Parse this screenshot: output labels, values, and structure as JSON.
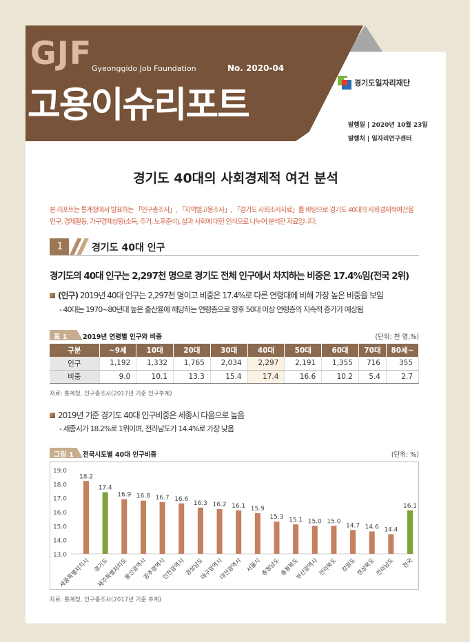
{
  "header": {
    "brand": "GJF",
    "brand_sub": "Gyeonggido Job Foundation",
    "issue_no": "No. 2020-04",
    "series_title": "고용이슈리포트",
    "org_logo_text": "경기도일자리재단",
    "issue_date": "발행일 | 2020년 10월 23일",
    "publisher": "발행처 | 일자리연구센터"
  },
  "doc_title": "경기도 40대의 사회경제적 여건 분석",
  "intro": [
    "본 리포트는 통계청에서 발표하는 「인구총조사」, 「지역별고용조사」, 「경기도 사회조사자료」를 바탕으로 경기도 40대의 사회경제적여건을",
    "인구, 경제활동, 가구경제상황(소득, 주거, 노후준비), 삶과 사회에 대한 인식으로 나누어 분석한 자료입니다."
  ],
  "section": {
    "number": "1",
    "title": "경기도 40대 인구"
  },
  "headline": "경기도의 40대 인구는 2,297천 명으로 경기도 전체 인구에서 차지하는 비중은 17.4%임(전국 2위)",
  "bullet1": {
    "tag": "(인구)",
    "text": " 2019년 40대 인구는 2,297천 명이고 비중은 17.4%로 다른 연령대에 비해 가장 높은 비중을 보임",
    "sub": "- 40대는 1970~80년대 높은 출산율에 해당하는 연령층으로 향후 50대 이상 연령층의 지속적 증가가 예상됨"
  },
  "table1": {
    "tag": "표 1",
    "title": "2019년 연령별 인구와 비중",
    "unit": "(단위: 천 명,%)",
    "headers": [
      "구분",
      "~9세",
      "10대",
      "20대",
      "30대",
      "40대",
      "50대",
      "60대",
      "70대",
      "80세~"
    ],
    "rows": [
      [
        "인구",
        "1,192",
        "1,332",
        "1,765",
        "2,034",
        "2,297",
        "2,191",
        "1,355",
        "716",
        "355"
      ],
      [
        "비중",
        "9.0",
        "10.1",
        "13.3",
        "15.4",
        "17.4",
        "16.6",
        "10.2",
        "5.4",
        "2.7"
      ]
    ],
    "source": "자료: 통계청, 인구총조사(2017년 기준 인구추계)"
  },
  "bullet2": {
    "text": "2019년 기준 경기도 40대 인구비중은 세종시 다음으로 높음",
    "sub": "- 세종시가 18.2%로 1위이며, 전라남도가 14.4%로 가장 낮음"
  },
  "figure1": {
    "tag": "그림 1",
    "title": "전국시도별 40대 인구비중",
    "unit": "(단위: %)",
    "source": "자료: 통계청, 인구총조사(2017년 기준 추계)"
  },
  "chart_data": {
    "type": "bar",
    "title": "전국시도별 40대 인구비중",
    "ylim": [
      13.0,
      19.0
    ],
    "yticks": [
      "13.0",
      "14.0",
      "15.0",
      "16.0",
      "17.0",
      "18.0",
      "19.0"
    ],
    "categories": [
      "세종특별자치시",
      "경기도",
      "제주특별자치도",
      "울산광역시",
      "광주광역시",
      "인천광역시",
      "경상남도",
      "대구광역시",
      "대전광역시",
      "서울시",
      "충청남도",
      "충청북도",
      "부산광역시",
      "전라북도",
      "강원도",
      "경상북도",
      "전라남도",
      "전국"
    ],
    "values": [
      18.2,
      17.4,
      16.9,
      16.8,
      16.7,
      16.6,
      16.3,
      16.2,
      16.1,
      15.9,
      15.3,
      15.1,
      15.0,
      15.0,
      14.7,
      14.6,
      14.4,
      16.1
    ],
    "labels": [
      "18.2",
      "17.4",
      "16.9",
      "16.8",
      "16.7",
      "16.6",
      "16.3",
      "16.2",
      "16.1",
      "15.9",
      "15.3",
      "15.1",
      "15.0",
      "15.0",
      "14.7",
      "14.6",
      "14.4",
      "16.1"
    ],
    "highlight": [
      "경기도",
      "전국"
    ],
    "colors": {
      "default": "#c4805f",
      "highlight": "#7ea33a"
    },
    "grid": false
  }
}
